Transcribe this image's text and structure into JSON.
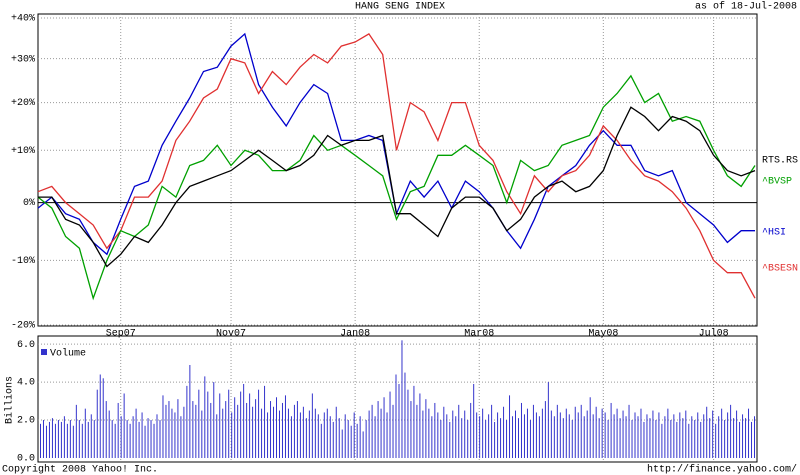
{
  "chart_data": [
    {
      "type": "line",
      "title": "HANG SENG INDEX",
      "subtitle": "as of 18-Jul-2008",
      "log_scale": true,
      "grid": true,
      "categories": [
        null,
        null,
        null,
        null,
        null,
        null,
        "Sep07",
        null,
        null,
        null,
        null,
        null,
        null,
        null,
        "Nov07",
        null,
        null,
        null,
        null,
        null,
        null,
        null,
        null,
        "Jan08",
        null,
        null,
        null,
        null,
        null,
        null,
        null,
        null,
        "Mar08",
        null,
        null,
        null,
        null,
        null,
        null,
        null,
        null,
        "May08",
        null,
        null,
        null,
        null,
        null,
        null,
        null,
        "Jul08",
        null,
        null,
        null
      ],
      "ylim": [
        -20,
        40
      ],
      "yticks": [
        {
          "value": -20,
          "label": "-20%"
        },
        {
          "value": -10,
          "label": "-10%"
        },
        {
          "value": 0,
          "label": "0%"
        },
        {
          "value": 10,
          "label": "+10%"
        },
        {
          "value": 20,
          "label": "+20%"
        },
        {
          "value": 30,
          "label": "+30%"
        },
        {
          "value": 40,
          "label": "+40%"
        }
      ],
      "series": [
        {
          "name": "^HSI",
          "color": "#0000cc",
          "values": [
            -1,
            1,
            -2,
            -3,
            -7,
            -9,
            -3,
            3,
            4,
            11,
            16,
            21,
            27,
            28,
            33,
            36,
            24,
            19,
            15,
            20,
            24,
            22,
            12,
            12,
            13,
            12,
            -2,
            4,
            1,
            4,
            -1,
            4,
            2,
            -1,
            -5,
            -8,
            -3,
            3,
            5,
            7,
            11,
            14,
            11,
            11,
            6,
            5,
            6,
            0,
            -2,
            -4,
            -7,
            -5,
            -5
          ]
        },
        {
          "name": "^BSESN",
          "color": "#e03030",
          "values": [
            2,
            3,
            0,
            -2,
            -4,
            -8,
            -5,
            1,
            1,
            4,
            12,
            16,
            21,
            23,
            30,
            29,
            22,
            27,
            24,
            28,
            31,
            29,
            33,
            34,
            36,
            31,
            10,
            20,
            18,
            12,
            20,
            20,
            11,
            8,
            2,
            -2,
            5,
            2,
            5,
            6,
            9,
            15,
            12,
            8,
            5,
            4,
            2,
            -1,
            -5,
            -10,
            -12,
            -12,
            -16
          ]
        },
        {
          "name": "^BVSP",
          "color": "#00a000",
          "values": [
            1,
            -1,
            -6,
            -8,
            -16,
            -10,
            -5,
            -6,
            -4,
            3,
            1,
            7,
            8,
            11,
            7,
            10,
            9,
            6,
            6,
            8,
            13,
            10,
            11,
            9,
            7,
            5,
            -3,
            2,
            3,
            9,
            9,
            11,
            9,
            7,
            0,
            8,
            6,
            7,
            11,
            12,
            13,
            19,
            22,
            26,
            20,
            22,
            16,
            17,
            16,
            10,
            5,
            3,
            7
          ]
        },
        {
          "name": "RTS.RS",
          "color": "#000000",
          "values": [
            1,
            1,
            -3,
            -4,
            -7,
            -11,
            -9,
            -6,
            -7,
            -4,
            0,
            3,
            4,
            5,
            6,
            8,
            10,
            8,
            6,
            7,
            9,
            13,
            11,
            12,
            12,
            13,
            -2,
            -2,
            -4,
            -6,
            -1,
            1,
            1,
            -1,
            -5,
            -3,
            1,
            3,
            4,
            2,
            3,
            6,
            13,
            19,
            17,
            14,
            17,
            16,
            14,
            9,
            6,
            5,
            6
          ]
        }
      ]
    },
    {
      "type": "bar",
      "ylabel": "Billions",
      "grid": true,
      "ylim": [
        0,
        6.2
      ],
      "yticks": [
        {
          "value": 0,
          "label": "0.0"
        },
        {
          "value": 2,
          "label": "2.0"
        },
        {
          "value": 4,
          "label": "4.0"
        },
        {
          "value": 6,
          "label": "6.0"
        }
      ],
      "series": [
        {
          "name": "Volume",
          "color": "#3333cc",
          "values": [
            1.8,
            2.0,
            1.7,
            1.9,
            2.1,
            1.8,
            2.0,
            1.9,
            2.2,
            1.8,
            2.0,
            1.7,
            2.8,
            2.0,
            1.8,
            2.6,
            1.9,
            2.3,
            2.0,
            3.6,
            4.4,
            4.2,
            3.0,
            2.5,
            2.0,
            1.8,
            2.9,
            2.2,
            3.4,
            2.0,
            1.8,
            2.2,
            2.6,
            1.9,
            2.4,
            1.7,
            2.1,
            2.0,
            1.8,
            2.3,
            2.0,
            3.3,
            2.8,
            3.0,
            2.6,
            2.4,
            3.1,
            2.2,
            2.7,
            3.8,
            4.9,
            3.0,
            2.8,
            3.6,
            2.5,
            4.3,
            3.5,
            2.9,
            4.0,
            2.3,
            3.4,
            2.6,
            3.0,
            3.6,
            2.4,
            3.2,
            2.8,
            3.5,
            3.9,
            2.9,
            3.4,
            2.7,
            3.1,
            3.6,
            2.6,
            3.8,
            2.4,
            3.0,
            2.7,
            3.2,
            2.5,
            2.9,
            3.3,
            2.6,
            2.2,
            2.8,
            3.0,
            2.4,
            2.7,
            2.1,
            2.5,
            3.4,
            2.6,
            2.3,
            1.8,
            2.4,
            2.6,
            2.2,
            1.9,
            2.7,
            2.1,
            1.5,
            2.3,
            2.0,
            1.7,
            2.4,
            1.8,
            2.2,
            1.4,
            2.0,
            2.5,
            2.8,
            2.2,
            3.0,
            2.6,
            3.2,
            2.4,
            3.5,
            2.8,
            4.4,
            3.9,
            6.2,
            4.5,
            3.6,
            3.0,
            3.8,
            2.8,
            3.4,
            2.5,
            3.1,
            2.6,
            2.2,
            2.9,
            2.4,
            2.0,
            2.7,
            2.3,
            1.9,
            2.5,
            2.2,
            2.8,
            2.1,
            2.5,
            2.0,
            2.9,
            3.9,
            2.4,
            2.2,
            2.6,
            2.0,
            2.3,
            2.8,
            1.9,
            2.4,
            2.1,
            2.7,
            2.0,
            3.3,
            2.2,
            2.5,
            2.1,
            2.9,
            2.3,
            2.6,
            2.0,
            2.8,
            2.4,
            2.2,
            2.6,
            3.0,
            4.0,
            2.5,
            2.2,
            2.8,
            2.4,
            2.1,
            2.6,
            2.3,
            2.0,
            2.7,
            2.4,
            2.8,
            2.2,
            2.5,
            3.2,
            2.3,
            2.7,
            2.1,
            2.6,
            2.4,
            2.0,
            2.9,
            2.3,
            2.6,
            2.1,
            2.5,
            2.2,
            2.8,
            2.0,
            2.4,
            2.2,
            2.6,
            1.9,
            2.3,
            2.1,
            2.5,
            2.0,
            2.4,
            1.8,
            2.2,
            2.6,
            2.0,
            2.3,
            1.9,
            2.4,
            2.1,
            2.5,
            1.8,
            2.2,
            2.0,
            2.4,
            1.9,
            2.3,
            2.7,
            2.1,
            2.5,
            1.8,
            2.2,
            2.6,
            2.0,
            2.4,
            2.8,
            2.1,
            2.5,
            1.9,
            2.3,
            2.1,
            2.6,
            1.9,
            2.2
          ]
        }
      ]
    }
  ],
  "footer": {
    "copyright": "Copyright 2008 Yahoo! Inc.",
    "url": "http://finance.yahoo.com/"
  }
}
